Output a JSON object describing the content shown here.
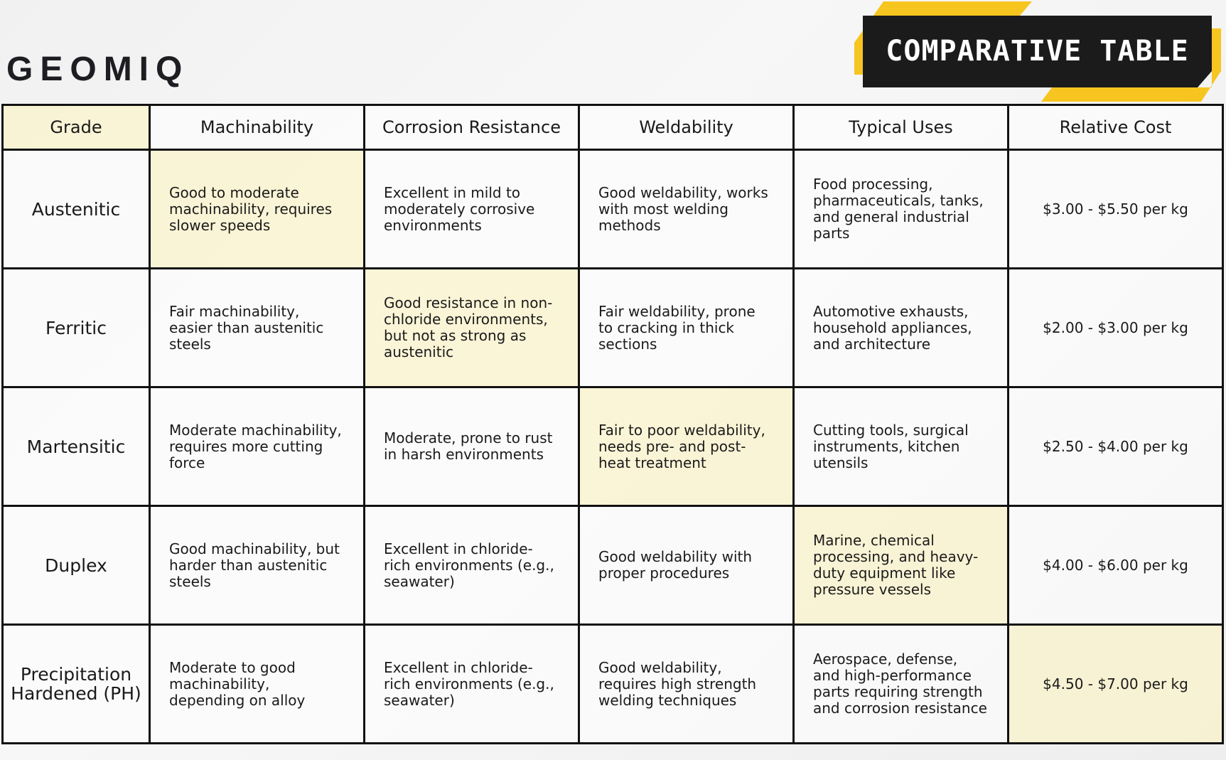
{
  "header": {
    "logo": "GEOMIQ",
    "title": "COMPARATIVE TABLE"
  },
  "table": {
    "columns": [
      "Grade",
      "Machinability",
      "Corrosion Resistance",
      "Weldability",
      "Typical Uses",
      "Relative Cost"
    ],
    "rows": [
      [
        "Austenitic",
        "Good to moderate machinability, requires slower speeds",
        "Excellent in mild to moderately corrosive environments",
        "Good weldability, works with most welding methods",
        "Food processing, pharmaceuticals, tanks, and general industrial parts",
        "$3.00 - $5.50 per kg"
      ],
      [
        "Ferritic",
        "Fair machinability, easier than austenitic steels",
        "Good resistance in non-chloride environments, but not as strong as austenitic",
        "Fair weldability, prone to cracking in thick sections",
        "Automotive exhausts, household appliances, and architecture",
        "$2.00 - $3.00 per kg"
      ],
      [
        "Martensitic",
        "Moderate machinability, requires more cutting force",
        "Moderate, prone to rust in harsh environments",
        "Fair to poor weldability, needs pre- and post-heat treatment",
        "Cutting tools, surgical instruments, kitchen utensils",
        "$2.50 - $4.00 per kg"
      ],
      [
        "Duplex",
        "Good machinability, but harder than austenitic steels",
        "Excellent in chloride-rich environments (e.g., seawater)",
        "Good weldability with proper procedures",
        "Marine, chemical processing, and heavy-duty equipment like pressure vessels",
        "$4.00 - $6.00 per kg"
      ],
      [
        "Precipitation Hardened (PH)",
        "Moderate to good machinability, depending on alloy",
        "Excellent in chloride-rich environments (e.g., seawater)",
        "Good weldability, requires high strength welding techniques",
        "Aerospace, defense, and high-performance parts requiring strength and corrosion resistance",
        "$4.50 - $7.00 per kg"
      ]
    ]
  }
}
